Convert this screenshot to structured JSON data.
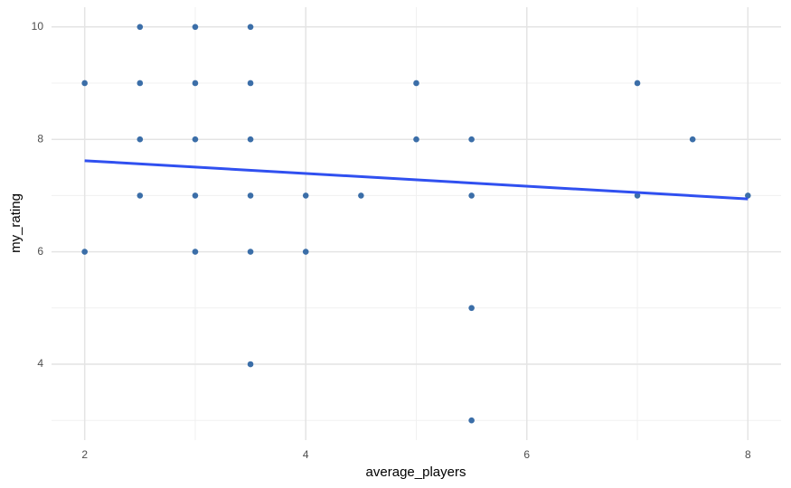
{
  "chart_data": {
    "type": "scatter",
    "x_label": "average_players",
    "y_label": "my_rating",
    "x": [
      2,
      2,
      2.5,
      2.5,
      2.5,
      2.5,
      3,
      3,
      3,
      3,
      3,
      3.5,
      3.5,
      3.5,
      3.5,
      3.5,
      3.5,
      4,
      4,
      4.5,
      5,
      5,
      5.5,
      5.5,
      5.5,
      5.5,
      7,
      7,
      7.5,
      8
    ],
    "series": [
      {
        "color": "#3b6ea8",
        "values": [
          9,
          6,
          10,
          9,
          8,
          7,
          10,
          9,
          8,
          7,
          6,
          10,
          9,
          8,
          7,
          6,
          4,
          7,
          6,
          7,
          9,
          8,
          8,
          7,
          5,
          3,
          9,
          7,
          8,
          7
        ]
      }
    ],
    "trend": {
      "color": "#3050f0",
      "x": [
        2,
        8
      ],
      "y": [
        7.62,
        6.94
      ]
    },
    "xlim": [
      1.7,
      8.3
    ],
    "ylim": [
      2.65,
      10.35
    ],
    "xticks": [
      2,
      4,
      6,
      8
    ],
    "yticks": [
      4,
      6,
      8,
      10
    ],
    "xminor": [
      3,
      5,
      7
    ],
    "yminor": [
      3,
      5,
      7,
      9
    ],
    "grid": true
  }
}
